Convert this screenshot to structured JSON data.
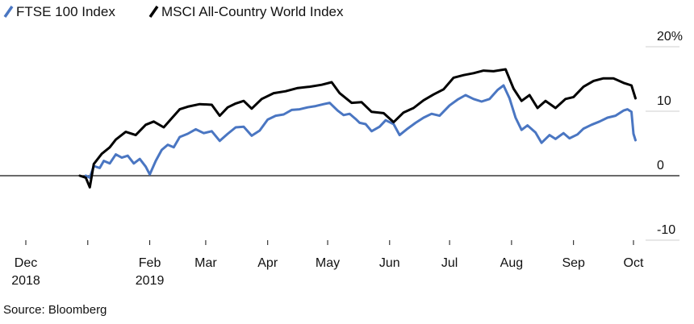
{
  "source": "Source: Bloomberg",
  "chart_data": {
    "type": "line",
    "title": "",
    "xlabel": "",
    "ylabel": "",
    "ylim": [
      -10,
      20
    ],
    "y_unit_suffix": "%",
    "yticks": [
      20,
      10,
      0,
      -10
    ],
    "ytick_labels": [
      "20%",
      "10",
      "0",
      "-10"
    ],
    "grid": "horizontal",
    "legend_placement": "top-left",
    "xlim": [
      "2018-12-01",
      "2019-10-01"
    ],
    "xticks": [
      {
        "date": "2018-12-01",
        "label": [
          "Dec",
          "2018"
        ]
      },
      {
        "date": "2019-01-01",
        "label": []
      },
      {
        "date": "2019-02-01",
        "label": [
          "Feb",
          "2019"
        ]
      },
      {
        "date": "2019-03-01",
        "label": [
          "Mar"
        ]
      },
      {
        "date": "2019-04-01",
        "label": [
          "Apr"
        ]
      },
      {
        "date": "2019-05-01",
        "label": [
          "May"
        ]
      },
      {
        "date": "2019-06-01",
        "label": [
          "Jun"
        ]
      },
      {
        "date": "2019-07-01",
        "label": [
          "Jul"
        ]
      },
      {
        "date": "2019-08-01",
        "label": [
          "Aug"
        ]
      },
      {
        "date": "2019-09-01",
        "label": [
          "Sep"
        ]
      },
      {
        "date": "2019-10-01",
        "label": [
          "Oct"
        ]
      }
    ],
    "series": [
      {
        "name": "FTSE 100 Index",
        "color": "#4a76c2",
        "points": [
          [
            "2018-12-31",
            0.0
          ],
          [
            "2019-01-02",
            -0.3
          ],
          [
            "2019-01-04",
            1.5
          ],
          [
            "2019-01-07",
            1.2
          ],
          [
            "2019-01-09",
            2.3
          ],
          [
            "2019-01-12",
            1.9
          ],
          [
            "2019-01-15",
            3.3
          ],
          [
            "2019-01-18",
            2.8
          ],
          [
            "2019-01-21",
            3.1
          ],
          [
            "2019-01-24",
            1.9
          ],
          [
            "2019-01-27",
            2.6
          ],
          [
            "2019-01-30",
            1.4
          ],
          [
            "2019-02-01",
            0.2
          ],
          [
            "2019-02-04",
            2.3
          ],
          [
            "2019-02-07",
            4.0
          ],
          [
            "2019-02-10",
            4.8
          ],
          [
            "2019-02-13",
            4.4
          ],
          [
            "2019-02-16",
            6.0
          ],
          [
            "2019-02-20",
            6.5
          ],
          [
            "2019-02-24",
            7.2
          ],
          [
            "2019-02-28",
            6.6
          ],
          [
            "2019-03-04",
            6.9
          ],
          [
            "2019-03-08",
            5.4
          ],
          [
            "2019-03-12",
            6.5
          ],
          [
            "2019-03-16",
            7.5
          ],
          [
            "2019-03-20",
            7.6
          ],
          [
            "2019-03-24",
            6.2
          ],
          [
            "2019-03-28",
            7.0
          ],
          [
            "2019-04-01",
            8.7
          ],
          [
            "2019-04-05",
            9.3
          ],
          [
            "2019-04-09",
            9.5
          ],
          [
            "2019-04-13",
            10.2
          ],
          [
            "2019-04-17",
            10.3
          ],
          [
            "2019-04-21",
            10.6
          ],
          [
            "2019-04-25",
            10.8
          ],
          [
            "2019-04-29",
            11.1
          ],
          [
            "2019-05-02",
            11.3
          ],
          [
            "2019-05-06",
            10.1
          ],
          [
            "2019-05-09",
            9.4
          ],
          [
            "2019-05-12",
            9.6
          ],
          [
            "2019-05-15",
            8.8
          ],
          [
            "2019-05-17",
            8.2
          ],
          [
            "2019-05-20",
            8.0
          ],
          [
            "2019-05-23",
            6.9
          ],
          [
            "2019-05-27",
            7.6
          ],
          [
            "2019-05-30",
            8.6
          ],
          [
            "2019-06-03",
            8.0
          ],
          [
            "2019-06-06",
            6.3
          ],
          [
            "2019-06-10",
            7.3
          ],
          [
            "2019-06-14",
            8.2
          ],
          [
            "2019-06-18",
            9.0
          ],
          [
            "2019-06-22",
            9.6
          ],
          [
            "2019-06-26",
            9.3
          ],
          [
            "2019-07-01",
            10.9
          ],
          [
            "2019-07-05",
            11.8
          ],
          [
            "2019-07-09",
            12.5
          ],
          [
            "2019-07-13",
            11.9
          ],
          [
            "2019-07-17",
            11.5
          ],
          [
            "2019-07-21",
            11.9
          ],
          [
            "2019-07-25",
            13.3
          ],
          [
            "2019-07-28",
            14.0
          ],
          [
            "2019-07-31",
            12.0
          ],
          [
            "2019-08-03",
            9.0
          ],
          [
            "2019-08-06",
            7.1
          ],
          [
            "2019-08-09",
            7.8
          ],
          [
            "2019-08-13",
            6.7
          ],
          [
            "2019-08-16",
            5.1
          ],
          [
            "2019-08-20",
            6.3
          ],
          [
            "2019-08-23",
            5.7
          ],
          [
            "2019-08-27",
            6.6
          ],
          [
            "2019-08-30",
            5.8
          ],
          [
            "2019-09-03",
            6.4
          ],
          [
            "2019-09-06",
            7.3
          ],
          [
            "2019-09-10",
            7.9
          ],
          [
            "2019-09-14",
            8.4
          ],
          [
            "2019-09-18",
            9.0
          ],
          [
            "2019-09-22",
            9.3
          ],
          [
            "2019-09-26",
            10.1
          ],
          [
            "2019-09-28",
            10.3
          ],
          [
            "2019-09-30",
            9.9
          ],
          [
            "2019-10-01",
            6.5
          ],
          [
            "2019-10-02",
            5.5
          ]
        ]
      },
      {
        "name": "MSCI All-Country World Index",
        "color": "#000000",
        "points": [
          [
            "2018-12-28",
            0.0
          ],
          [
            "2018-12-31",
            -0.3
          ],
          [
            "2019-01-02",
            -1.8
          ],
          [
            "2019-01-04",
            1.8
          ],
          [
            "2019-01-08",
            3.4
          ],
          [
            "2019-01-12",
            4.4
          ],
          [
            "2019-01-15",
            5.6
          ],
          [
            "2019-01-20",
            6.8
          ],
          [
            "2019-01-25",
            6.3
          ],
          [
            "2019-01-30",
            7.9
          ],
          [
            "2019-02-03",
            8.4
          ],
          [
            "2019-02-08",
            7.5
          ],
          [
            "2019-02-12",
            8.9
          ],
          [
            "2019-02-16",
            10.3
          ],
          [
            "2019-02-20",
            10.7
          ],
          [
            "2019-02-26",
            11.1
          ],
          [
            "2019-03-04",
            11.0
          ],
          [
            "2019-03-08",
            9.3
          ],
          [
            "2019-03-12",
            10.6
          ],
          [
            "2019-03-16",
            11.2
          ],
          [
            "2019-03-20",
            11.6
          ],
          [
            "2019-03-24",
            10.4
          ],
          [
            "2019-03-29",
            11.9
          ],
          [
            "2019-04-04",
            12.8
          ],
          [
            "2019-04-10",
            13.1
          ],
          [
            "2019-04-16",
            13.6
          ],
          [
            "2019-04-22",
            13.8
          ],
          [
            "2019-04-28",
            14.1
          ],
          [
            "2019-05-03",
            14.5
          ],
          [
            "2019-05-07",
            12.8
          ],
          [
            "2019-05-13",
            11.3
          ],
          [
            "2019-05-18",
            11.4
          ],
          [
            "2019-05-23",
            9.9
          ],
          [
            "2019-05-29",
            9.7
          ],
          [
            "2019-06-03",
            8.3
          ],
          [
            "2019-06-08",
            9.8
          ],
          [
            "2019-06-13",
            10.5
          ],
          [
            "2019-06-18",
            11.7
          ],
          [
            "2019-06-23",
            12.6
          ],
          [
            "2019-06-28",
            13.4
          ],
          [
            "2019-07-03",
            15.2
          ],
          [
            "2019-07-08",
            15.6
          ],
          [
            "2019-07-13",
            15.9
          ],
          [
            "2019-07-18",
            16.3
          ],
          [
            "2019-07-23",
            16.2
          ],
          [
            "2019-07-29",
            16.5
          ],
          [
            "2019-08-02",
            13.5
          ],
          [
            "2019-08-06",
            11.6
          ],
          [
            "2019-08-10",
            12.5
          ],
          [
            "2019-08-14",
            10.5
          ],
          [
            "2019-08-18",
            11.6
          ],
          [
            "2019-08-23",
            10.5
          ],
          [
            "2019-08-28",
            11.9
          ],
          [
            "2019-09-01",
            12.2
          ],
          [
            "2019-09-06",
            13.8
          ],
          [
            "2019-09-11",
            14.7
          ],
          [
            "2019-09-16",
            15.1
          ],
          [
            "2019-09-21",
            15.1
          ],
          [
            "2019-09-26",
            14.4
          ],
          [
            "2019-09-30",
            14.0
          ],
          [
            "2019-10-02",
            12.0
          ]
        ]
      }
    ]
  }
}
